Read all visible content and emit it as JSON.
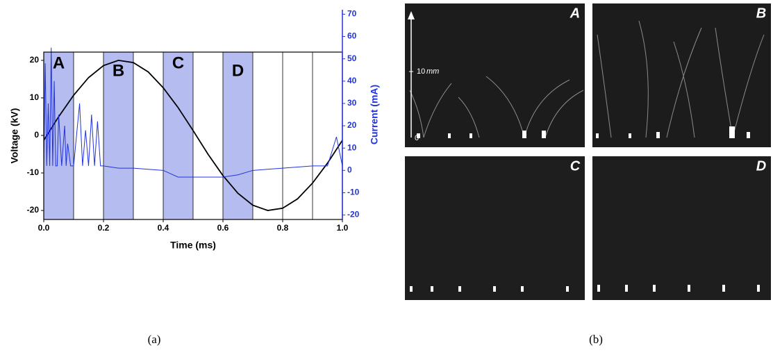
{
  "chart_data": {
    "type": "line",
    "xlabel": "Time (ms)",
    "ylabel": "Voltage (kV)",
    "y2label": "Current (mA)",
    "xlim": [
      0,
      1.0
    ],
    "ylim": [
      -22.4,
      22.2
    ],
    "y2lim": [
      -22,
      72
    ],
    "xticks": [
      {
        "value": 0,
        "label": "0.0"
      },
      {
        "value": 0.2,
        "label": "0.2"
      },
      {
        "value": 0.4,
        "label": "0.4"
      },
      {
        "value": 0.6,
        "label": "0.6"
      },
      {
        "value": 0.8,
        "label": "0.8"
      },
      {
        "value": 1.0,
        "label": "1.0"
      }
    ],
    "xgrid": [
      0.1,
      0.2,
      0.3,
      0.4,
      0.5,
      0.6,
      0.7,
      0.8,
      0.9
    ],
    "yticks": [
      -20,
      -10,
      0,
      10,
      20
    ],
    "y2ticks": [
      -20,
      -10,
      0,
      10,
      20,
      30,
      40,
      50,
      60,
      70
    ],
    "bands": [
      {
        "label": "A",
        "start": 0,
        "end": 0.1
      },
      {
        "label": "B",
        "start": 0.2,
        "end": 0.3
      },
      {
        "label": "C",
        "start": 0.4,
        "end": 0.5
      },
      {
        "label": "D",
        "start": 0.6,
        "end": 0.7
      }
    ],
    "band_color": "#b4bcf0",
    "series": [
      {
        "color": "#000000",
        "x": [
          0,
          0.05,
          0.1,
          0.15,
          0.2,
          0.25,
          0.3,
          0.35,
          0.4,
          0.45,
          0.5,
          0.55,
          0.6,
          0.65,
          0.7,
          0.75,
          0.8,
          0.85,
          0.9,
          0.95,
          1.0
        ],
        "values": [
          -1.3,
          5.0,
          10.7,
          15.4,
          18.6,
          20.0,
          19.4,
          16.9,
          12.7,
          7.4,
          1.3,
          -5.0,
          -10.7,
          -15.4,
          -18.6,
          -20.0,
          -19.4,
          -16.9,
          -12.7,
          -7.4,
          -1.3
        ]
      },
      {
        "color": "#2233dd",
        "axis": "y2",
        "x": [
          0,
          0.005,
          0.01,
          0.015,
          0.02,
          0.025,
          0.03,
          0.035,
          0.04,
          0.045,
          0.05,
          0.06,
          0.07,
          0.075,
          0.08,
          0.09,
          0.1,
          0.12,
          0.13,
          0.14,
          0.15,
          0.16,
          0.17,
          0.18,
          0.19,
          0.2,
          0.25,
          0.3,
          0.4,
          0.45,
          0.5,
          0.55,
          0.6,
          0.65,
          0.7,
          0.8,
          0.9,
          0.95,
          0.98,
          1.0
        ],
        "values": [
          2,
          48,
          2,
          30,
          2,
          55,
          2,
          40,
          2,
          2,
          25,
          2,
          20,
          2,
          12,
          2,
          2,
          30,
          2,
          18,
          2,
          25,
          2,
          22,
          2,
          2,
          1,
          1,
          0,
          -3,
          -3,
          -3,
          -3,
          -2,
          0,
          1,
          2,
          2,
          15,
          2
        ]
      }
    ]
  },
  "panels": {
    "labels": [
      "A",
      "B",
      "C",
      "D"
    ],
    "scale_value": "10",
    "scale_unit": "mm",
    "scale_zero": "0"
  },
  "captions": [
    "(a)",
    "(b)"
  ]
}
